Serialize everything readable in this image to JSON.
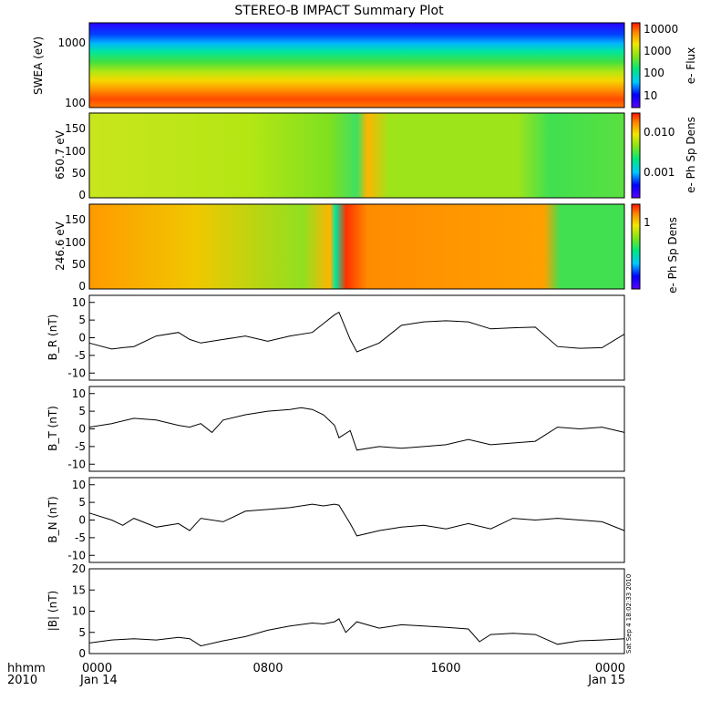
{
  "title": "STEREO-B IMPACT Summary Plot",
  "footer": {
    "time_label": "hhmm",
    "year_label": "2010",
    "x_ticks": [
      "0000",
      "0800",
      "1600",
      "0000"
    ],
    "x_dates": [
      "Jan 14",
      "",
      "",
      "Jan 15"
    ],
    "stamp": "Sat Sep  4 18:02:33 2010"
  },
  "colors": {
    "spectrogram_palette": [
      "#0000ff",
      "#00c8ff",
      "#00e680",
      "#7fe51a",
      "#f2e600",
      "#ff8c00",
      "#ff1400"
    ],
    "trace": "#000000",
    "background": "#ffffff"
  },
  "chart_data": [
    {
      "type": "heatmap",
      "ylabel": "SWEA (eV)",
      "yscale": "log",
      "ylim": [
        90,
        2100
      ],
      "yticks": [
        "1000",
        "100"
      ],
      "colorbar": {
        "label": "e- Flux",
        "scale": "log",
        "ticks": [
          "10000",
          "1000",
          "100",
          "10"
        ]
      }
    },
    {
      "type": "heatmap",
      "ylabel": "650.7 eV",
      "ylim": [
        0,
        180
      ],
      "yticks": [
        "150",
        "100",
        "50",
        "0"
      ],
      "colorbar": {
        "label": "e- Ph Sp Dens",
        "scale": "log",
        "ticks": [
          "0.010",
          "0.001"
        ]
      }
    },
    {
      "type": "heatmap",
      "ylabel": "246.6 eV",
      "ylim": [
        0,
        180
      ],
      "yticks": [
        "150",
        "100",
        "50",
        "0"
      ],
      "colorbar": {
        "label": "e- Ph Sp Dens",
        "scale": "log",
        "ticks": [
          "1"
        ]
      }
    },
    {
      "type": "line",
      "ylabel": "B_R (nT)",
      "ylim": [
        -12,
        12
      ],
      "yticks": [
        "10",
        "5",
        "0",
        "-5",
        "-10"
      ],
      "x_hours": [
        0,
        1,
        1.5,
        2,
        3,
        4,
        4.5,
        5,
        6,
        7,
        8,
        9,
        10,
        10.5,
        11,
        11.2,
        11.7,
        12,
        13,
        14,
        15,
        16,
        17,
        18,
        19,
        20,
        21,
        22,
        23,
        24
      ],
      "values": [
        -1.5,
        -3.2,
        -2.8,
        -2.5,
        0.5,
        1.5,
        -0.5,
        -1.5,
        -0.5,
        0.5,
        -1.0,
        0.5,
        1.5,
        4.0,
        6.5,
        7.2,
        -0.5,
        -4.0,
        -1.5,
        3.5,
        4.5,
        4.8,
        4.5,
        2.5,
        2.8,
        3.0,
        -2.5,
        -3.0,
        -2.8,
        1.0
      ]
    },
    {
      "type": "line",
      "ylabel": "B_T (nT)",
      "ylim": [
        -12,
        12
      ],
      "yticks": [
        "10",
        "5",
        "0",
        "-5",
        "-10"
      ],
      "x_hours": [
        0,
        1,
        2,
        3,
        4,
        4.5,
        5,
        5.5,
        6,
        7,
        8,
        9,
        9.5,
        10,
        10.5,
        11,
        11.2,
        11.7,
        12,
        13,
        14,
        15,
        16,
        17,
        18,
        19,
        20,
        21,
        22,
        23,
        24
      ],
      "values": [
        0.5,
        1.5,
        3.0,
        2.5,
        1.0,
        0.5,
        1.5,
        -1.0,
        2.5,
        4.0,
        5.0,
        5.5,
        6.0,
        5.5,
        4.0,
        1.0,
        -2.5,
        -0.5,
        -6.0,
        -5.0,
        -5.5,
        -5.0,
        -4.5,
        -3.0,
        -4.5,
        -4.0,
        -3.5,
        0.5,
        0.0,
        0.5,
        -1.0
      ]
    },
    {
      "type": "line",
      "ylabel": "B_N (nT)",
      "ylim": [
        -12,
        12
      ],
      "yticks": [
        "10",
        "5",
        "0",
        "-5",
        "-10"
      ],
      "x_hours": [
        0,
        1,
        1.5,
        2,
        3,
        4,
        4.5,
        5,
        6,
        7,
        8,
        9,
        10,
        10.5,
        11,
        11.2,
        11.7,
        12,
        13,
        14,
        15,
        16,
        17,
        18,
        19,
        20,
        21,
        22,
        23,
        24
      ],
      "values": [
        2.0,
        0.0,
        -1.5,
        0.5,
        -2.0,
        -1.0,
        -3.0,
        0.5,
        -0.5,
        2.5,
        3.0,
        3.5,
        4.5,
        4.0,
        4.5,
        4.2,
        -1.0,
        -4.5,
        -3.0,
        -2.0,
        -1.5,
        -2.5,
        -1.0,
        -2.5,
        0.5,
        0.0,
        0.5,
        0.0,
        -0.5,
        -3.0
      ]
    },
    {
      "type": "line",
      "ylabel": "|B| (nT)",
      "ylim": [
        0,
        20
      ],
      "yticks": [
        "20",
        "15",
        "10",
        "5",
        "0"
      ],
      "x_hours": [
        0,
        1,
        2,
        3,
        4,
        4.5,
        5,
        6,
        7,
        8,
        9,
        10,
        10.5,
        11,
        11.2,
        11.5,
        12,
        13,
        14,
        15,
        16,
        17,
        17.5,
        18,
        19,
        20,
        21,
        22,
        23,
        24
      ],
      "values": [
        2.5,
        3.2,
        3.5,
        3.2,
        3.8,
        3.5,
        1.8,
        3.0,
        4.0,
        5.5,
        6.5,
        7.2,
        7.0,
        7.5,
        8.2,
        5.0,
        7.5,
        6.0,
        6.8,
        6.5,
        6.2,
        5.8,
        2.8,
        4.5,
        4.8,
        4.5,
        2.2,
        3.0,
        3.2,
        3.5
      ]
    }
  ]
}
